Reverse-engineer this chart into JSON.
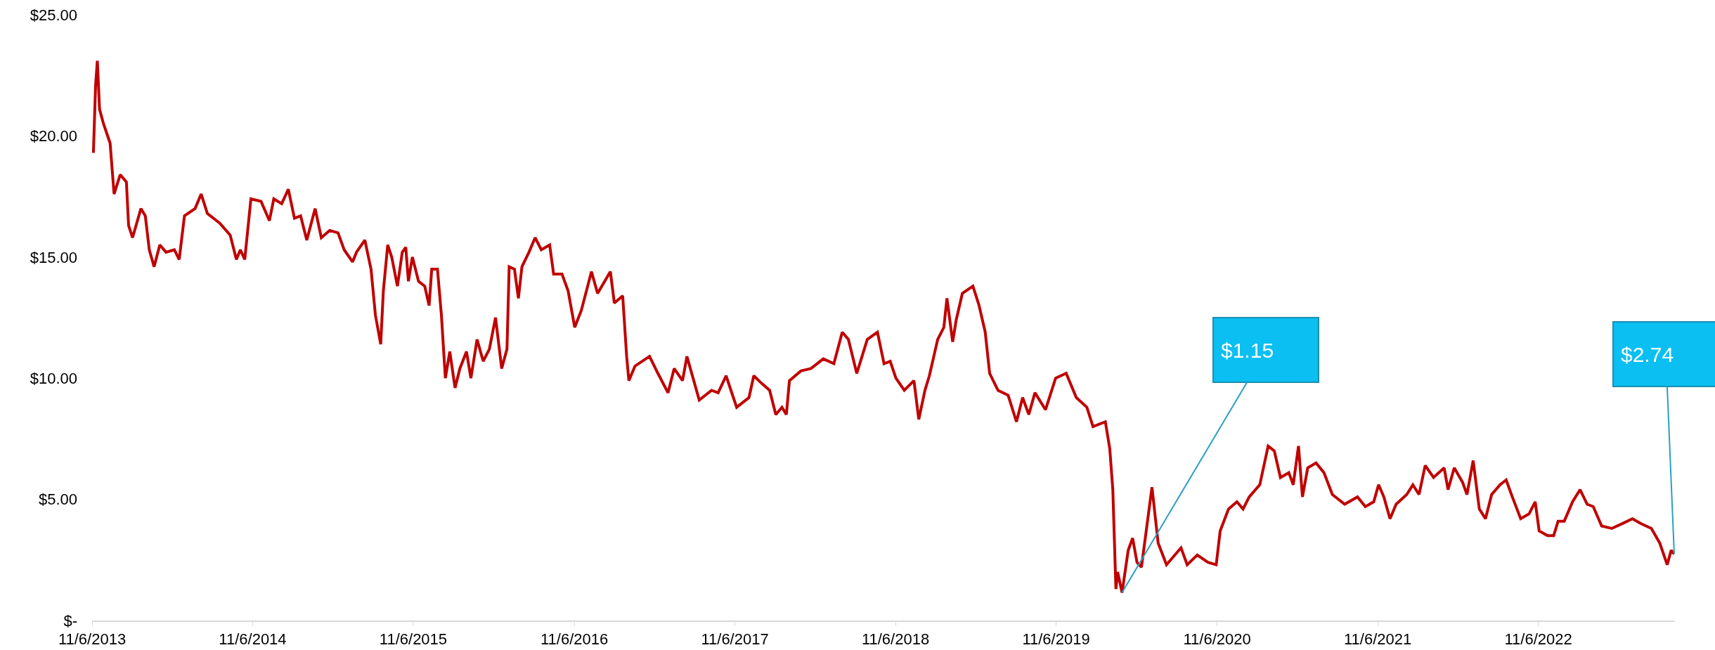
{
  "chart_data": {
    "type": "line",
    "x": [
      "2013-11-09",
      "2013-11-14",
      "2013-11-18",
      "2013-11-23",
      "2013-12-02",
      "2013-12-17",
      "2013-12-26",
      "2014-01-09",
      "2014-01-23",
      "2014-01-28",
      "2014-02-06",
      "2014-02-25",
      "2014-03-07",
      "2014-03-16",
      "2014-03-27",
      "2014-04-09",
      "2014-04-23",
      "2014-05-12",
      "2014-05-23",
      "2014-06-04",
      "2014-06-28",
      "2014-07-12",
      "2014-07-26",
      "2014-08-23",
      "2014-09-16",
      "2014-09-30",
      "2014-10-09",
      "2014-10-19",
      "2014-11-02",
      "2014-11-25",
      "2014-12-14",
      "2014-12-24",
      "2015-01-11",
      "2015-01-26",
      "2015-02-09",
      "2015-02-23",
      "2015-03-09",
      "2015-03-28",
      "2015-04-11",
      "2015-04-30",
      "2015-05-19",
      "2015-06-02",
      "2015-06-21",
      "2015-06-30",
      "2015-07-19",
      "2015-08-02",
      "2015-08-12",
      "2015-08-24",
      "2015-08-30",
      "2015-09-09",
      "2015-09-18",
      "2015-10-01",
      "2015-10-12",
      "2015-10-20",
      "2015-10-26",
      "2015-11-04",
      "2015-11-18",
      "2015-12-02",
      "2015-12-12",
      "2015-12-18",
      "2015-12-31",
      "2016-01-09",
      "2016-01-18",
      "2016-01-28",
      "2016-02-09",
      "2016-02-20",
      "2016-03-06",
      "2016-03-16",
      "2016-03-30",
      "2016-04-13",
      "2016-04-27",
      "2016-05-11",
      "2016-05-25",
      "2016-06-06",
      "2016-06-11",
      "2016-06-23",
      "2016-07-02",
      "2016-07-10",
      "2016-07-26",
      "2016-08-09",
      "2016-08-23",
      "2016-09-11",
      "2016-09-20",
      "2016-10-09",
      "2016-10-23",
      "2016-11-07",
      "2016-11-22",
      "2016-12-15",
      "2016-12-29",
      "2017-01-27",
      "2017-02-05",
      "2017-02-24",
      "2017-03-05",
      "2017-03-10",
      "2017-03-24",
      "2017-04-26",
      "2017-05-15",
      "2017-06-07",
      "2017-06-21",
      "2017-07-10",
      "2017-07-20",
      "2017-08-17",
      "2017-09-14",
      "2017-09-29",
      "2017-10-17",
      "2017-11-10",
      "2017-12-08",
      "2017-12-19",
      "2018-01-05",
      "2018-01-24",
      "2018-02-07",
      "2018-02-21",
      "2018-03-03",
      "2018-03-10",
      "2018-04-05",
      "2018-04-28",
      "2018-05-26",
      "2018-06-19",
      "2018-07-08",
      "2018-07-22",
      "2018-08-10",
      "2018-09-03",
      "2018-09-26",
      "2018-10-11",
      "2018-10-25",
      "2018-11-07",
      "2018-11-26",
      "2018-12-18",
      "2018-12-29",
      "2019-01-12",
      "2019-01-22",
      "2019-02-10",
      "2019-02-24",
      "2019-03-03",
      "2019-03-16",
      "2019-03-24",
      "2019-04-07",
      "2019-05-01",
      "2019-05-15",
      "2019-05-29",
      "2019-06-08",
      "2019-06-27",
      "2019-07-20",
      "2019-08-08",
      "2019-08-22",
      "2019-09-05",
      "2019-09-19",
      "2019-10-13",
      "2019-11-05",
      "2019-11-29",
      "2019-12-22",
      "2020-01-15",
      "2020-01-29",
      "2020-02-26",
      "2020-03-07",
      "2020-03-14",
      "2020-03-21",
      "2020-03-25",
      "2020-04-04",
      "2020-04-18",
      "2020-04-28",
      "2020-05-08",
      "2020-05-18",
      "2020-06-11",
      "2020-06-25",
      "2020-07-14",
      "2020-08-16",
      "2020-08-30",
      "2020-09-22",
      "2020-10-16",
      "2020-11-04",
      "2020-11-13",
      "2020-12-02",
      "2020-12-21",
      "2021-01-04",
      "2021-01-18",
      "2021-02-11",
      "2021-03-02",
      "2021-03-16",
      "2021-03-30",
      "2021-04-18",
      "2021-04-28",
      "2021-05-10",
      "2021-05-19",
      "2021-05-31",
      "2021-06-19",
      "2021-07-07",
      "2021-07-26",
      "2021-08-23",
      "2021-09-21",
      "2021-10-09",
      "2021-10-28",
      "2021-11-08",
      "2021-11-20",
      "2021-12-04",
      "2021-12-18",
      "2022-01-11",
      "2022-01-25",
      "2022-02-08",
      "2022-02-22",
      "2022-03-13",
      "2022-04-06",
      "2022-04-15",
      "2022-04-29",
      "2022-05-18",
      "2022-05-28",
      "2022-06-11",
      "2022-06-25",
      "2022-07-09",
      "2022-07-23",
      "2022-08-11",
      "2022-08-25",
      "2022-09-08",
      "2022-09-27",
      "2022-10-16",
      "2022-10-30",
      "2022-11-08",
      "2022-11-27",
      "2022-12-11",
      "2022-12-21",
      "2023-01-04",
      "2023-01-23",
      "2023-02-09",
      "2023-02-25",
      "2023-03-11",
      "2023-03-30",
      "2023-04-22",
      "2023-05-16",
      "2023-06-08",
      "2023-06-27",
      "2023-07-21",
      "2023-08-09",
      "2023-08-26",
      "2023-09-04",
      "2023-09-11"
    ],
    "series": [
      {
        "color": "#c00000",
        "values": [
          19.3,
          22.1,
          23.1,
          21.1,
          20.5,
          19.7,
          17.6,
          18.4,
          18.1,
          16.3,
          15.8,
          17.0,
          16.7,
          15.3,
          14.6,
          15.5,
          15.2,
          15.3,
          14.9,
          16.7,
          17.0,
          17.6,
          16.8,
          16.4,
          15.9,
          14.9,
          15.3,
          14.9,
          17.4,
          17.3,
          16.5,
          17.4,
          17.2,
          17.8,
          16.6,
          16.7,
          15.7,
          17.0,
          15.8,
          16.1,
          16.0,
          15.3,
          14.8,
          15.2,
          15.7,
          14.5,
          12.6,
          11.4,
          13.6,
          15.5,
          15.0,
          13.8,
          15.2,
          15.4,
          14.0,
          15.0,
          14.0,
          13.8,
          13.0,
          14.5,
          14.5,
          12.6,
          10.0,
          11.1,
          9.6,
          10.4,
          11.1,
          10.0,
          11.6,
          10.7,
          11.2,
          12.5,
          10.4,
          11.2,
          14.6,
          14.5,
          13.3,
          14.6,
          15.2,
          15.8,
          15.3,
          15.5,
          14.3,
          14.3,
          13.6,
          12.1,
          12.8,
          14.4,
          13.5,
          14.4,
          13.1,
          13.4,
          10.9,
          9.9,
          10.5,
          10.9,
          10.2,
          9.4,
          10.4,
          9.9,
          10.9,
          9.1,
          9.5,
          9.4,
          10.1,
          8.8,
          9.2,
          10.1,
          9.8,
          9.5,
          8.5,
          8.8,
          8.5,
          9.9,
          10.3,
          10.4,
          10.8,
          10.6,
          11.9,
          11.6,
          10.2,
          11.6,
          11.9,
          10.6,
          10.7,
          10.0,
          9.5,
          9.9,
          8.3,
          9.5,
          10.1,
          11.6,
          12.1,
          13.3,
          11.5,
          12.4,
          13.5,
          13.8,
          13.0,
          11.9,
          10.2,
          9.5,
          9.3,
          8.2,
          9.2,
          8.5,
          9.4,
          8.7,
          10.0,
          10.2,
          9.2,
          8.8,
          8.0,
          8.2,
          7.1,
          5.4,
          1.3,
          2.0,
          1.15,
          2.9,
          3.4,
          2.4,
          2.2,
          5.5,
          3.2,
          2.3,
          3.0,
          2.3,
          2.7,
          2.4,
          2.3,
          3.7,
          4.6,
          4.9,
          4.6,
          5.1,
          5.6,
          7.2,
          7.0,
          5.9,
          6.1,
          5.6,
          7.2,
          5.1,
          6.3,
          6.5,
          6.1,
          5.2,
          4.8,
          5.1,
          4.7,
          4.9,
          5.6,
          5.1,
          4.2,
          4.8,
          5.2,
          5.6,
          5.2,
          6.4,
          5.9,
          6.3,
          5.4,
          6.3,
          5.7,
          5.2,
          6.6,
          4.6,
          4.2,
          5.2,
          5.6,
          5.8,
          5.1,
          4.2,
          4.4,
          4.9,
          3.7,
          3.5,
          3.5,
          4.1,
          4.1,
          4.9,
          5.4,
          4.8,
          4.7,
          3.9,
          3.8,
          4.0,
          4.2,
          4.0,
          3.8,
          3.2,
          2.3,
          2.9,
          2.74
        ]
      }
    ],
    "xlim": [
      "2013-11-06",
      "2023-09-11"
    ],
    "xticks": [
      {
        "value": "2013-11-06",
        "label": "11/6/2013"
      },
      {
        "value": "2014-11-06",
        "label": "11/6/2014"
      },
      {
        "value": "2015-11-06",
        "label": "11/6/2015"
      },
      {
        "value": "2016-11-06",
        "label": "11/6/2016"
      },
      {
        "value": "2017-11-06",
        "label": "11/6/2017"
      },
      {
        "value": "2018-11-06",
        "label": "11/6/2018"
      },
      {
        "value": "2019-11-06",
        "label": "11/6/2019"
      },
      {
        "value": "2020-11-06",
        "label": "11/6/2020"
      },
      {
        "value": "2021-11-06",
        "label": "11/6/2021"
      },
      {
        "value": "2022-11-06",
        "label": "11/6/2022"
      }
    ],
    "ylim": [
      0,
      25
    ],
    "yticks": [
      {
        "value": 0,
        "label": "$-"
      },
      {
        "value": 5,
        "label": "$5.00"
      },
      {
        "value": 10,
        "label": "$10.00"
      },
      {
        "value": 15,
        "label": "$15.00"
      },
      {
        "value": 20,
        "label": "$20.00"
      },
      {
        "value": 25,
        "label": "$25.00"
      }
    ],
    "annotations": [
      {
        "text": "$1.15",
        "x": "2020-04-04",
        "y": 1.15
      },
      {
        "text": "$2.74",
        "x": "2023-09-11",
        "y": 2.74
      }
    ]
  }
}
